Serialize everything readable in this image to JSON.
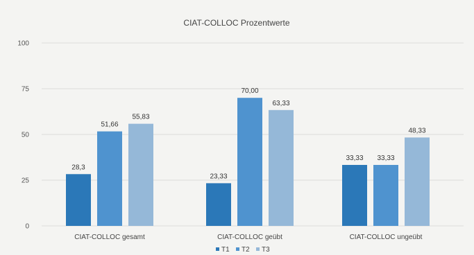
{
  "chart_data": {
    "type": "bar",
    "title": "CIAT-COLLOC Prozentwerte",
    "categories": [
      "CIAT-COLLOC gesamt",
      "CIAT-COLLOC geübt",
      "CIAT-COLLOC ungeübt"
    ],
    "series": [
      {
        "name": "T1",
        "values": [
          28.3,
          23.33,
          33.33
        ],
        "labels": [
          "28,3",
          "23,33",
          "33,33"
        ],
        "color": "#2b78b8"
      },
      {
        "name": "T2",
        "values": [
          51.66,
          70.0,
          33.33
        ],
        "labels": [
          "51,66",
          "70,00",
          "33,33"
        ],
        "color": "#4f93cf"
      },
      {
        "name": "T3",
        "values": [
          55.83,
          63.33,
          48.33
        ],
        "labels": [
          "55,83",
          "63,33",
          "48,33"
        ],
        "color": "#95b8d8"
      }
    ],
    "yticks": [
      "0",
      "25",
      "50",
      "75",
      "100"
    ],
    "ylim": [
      0,
      100
    ],
    "grid": true,
    "legend_position": "bottom"
  }
}
